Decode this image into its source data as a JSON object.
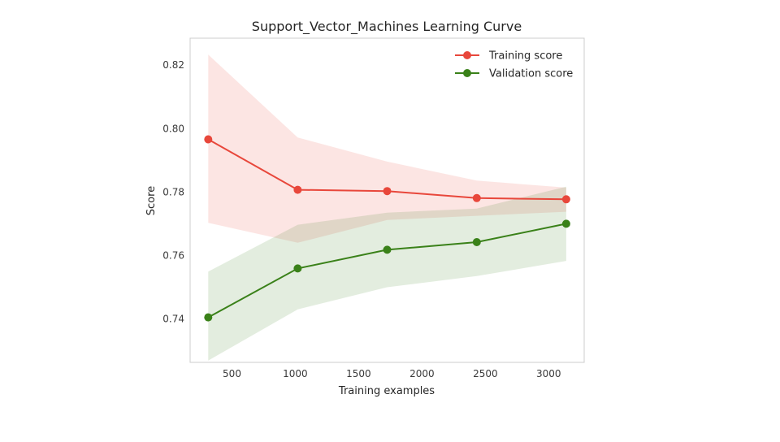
{
  "chart_data": {
    "type": "line",
    "title": "Support_Vector_Machines Learning Curve",
    "xlabel": "Training examples",
    "ylabel": "Score",
    "x": [
      313,
      1019,
      1725,
      2432,
      3138
    ],
    "xlim": [
      170,
      3280
    ],
    "ylim": [
      0.7263,
      0.8285
    ],
    "xticks": [
      500,
      1000,
      1500,
      2000,
      2500,
      3000
    ],
    "yticks": [
      0.74,
      0.76,
      0.78,
      0.8,
      0.82
    ],
    "ytick_labels": [
      "0.74",
      "0.76",
      "0.78",
      "0.80",
      "0.82"
    ],
    "grid": false,
    "legend_position": "top-right",
    "series": [
      {
        "name": "Training score",
        "color": "#e8473b",
        "values": [
          0.7966,
          0.7807,
          0.7803,
          0.7781,
          0.7777
        ],
        "upper": [
          0.8233,
          0.7972,
          0.7896,
          0.7836,
          0.7814
        ],
        "lower": [
          0.7703,
          0.764,
          0.7712,
          0.7725,
          0.7738
        ]
      },
      {
        "name": "Validation score",
        "color": "#3a8119",
        "values": [
          0.7405,
          0.7559,
          0.7618,
          0.7642,
          0.77
        ],
        "upper": [
          0.7549,
          0.7697,
          0.7735,
          0.7748,
          0.7817
        ],
        "lower": [
          0.7269,
          0.743,
          0.75,
          0.7535,
          0.7583
        ]
      }
    ]
  }
}
